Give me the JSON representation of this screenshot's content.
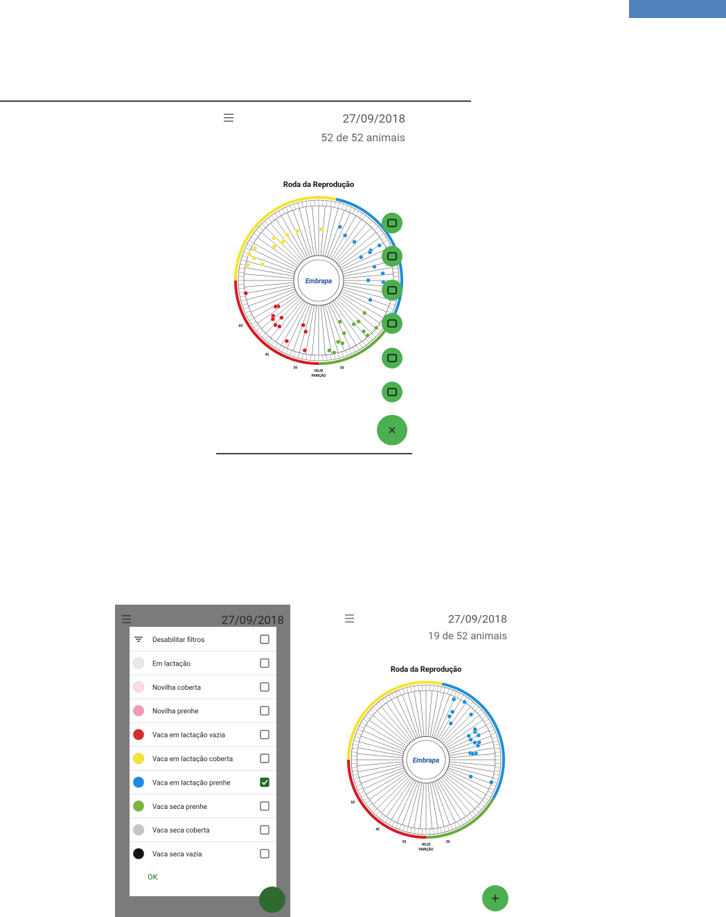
{
  "screen1": {
    "date": "27/09/2018",
    "count": "52 de 52 animais",
    "wheel": {
      "title": "Roda da Reprodução",
      "logo": "Embrapa",
      "today": "HOJE",
      "birth": "PARIÇÃO",
      "marks": [
        "60",
        "45",
        "30",
        "30"
      ]
    }
  },
  "filter_dialog": {
    "date": "27/09/2018",
    "items": [
      {
        "label": "Desabilitar filtros",
        "checked": false
      },
      {
        "label": "Em lactação",
        "checked": false,
        "color": "#e8e8e8"
      },
      {
        "label": "Novilha coberta",
        "checked": false,
        "color": "#f8dbe3"
      },
      {
        "label": "Novilha prenhe",
        "checked": false,
        "color": "#f29bb5"
      },
      {
        "label": "Vaca em lactação vazia",
        "checked": false,
        "color": "#d32f2f"
      },
      {
        "label": "Vaca em lactação coberta",
        "checked": false,
        "color": "#f2e52b"
      },
      {
        "label": "Vaca em lactação prenhe",
        "checked": true,
        "color": "#1e88e5"
      },
      {
        "label": "Vaca seca prenhe",
        "checked": false,
        "color": "#7cb342"
      },
      {
        "label": "Vaca seca coberta",
        "checked": false,
        "color": "#c4c4c4"
      },
      {
        "label": "Vaca seca vazia",
        "checked": false,
        "color": "#111111"
      }
    ],
    "ok": "OK"
  },
  "screen2": {
    "date": "27/09/2018",
    "count": "19 de 52 animais",
    "wheel": {
      "title": "Roda da Reprodução",
      "logo": "Embrapa",
      "today": "HOJE",
      "birth": "PARIÇÃO",
      "marks": [
        "60",
        "45",
        "30",
        "30"
      ]
    }
  }
}
